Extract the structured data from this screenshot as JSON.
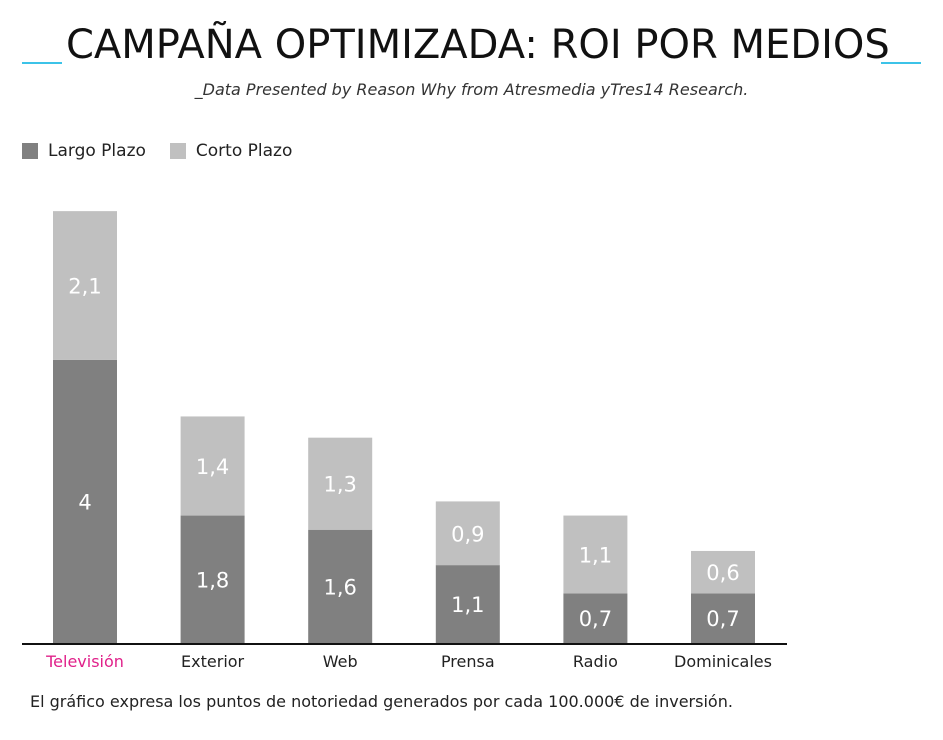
{
  "header": {
    "title": "CAMPAÑA OPTIMIZADA: ROI POR MEDIOS",
    "subtitle": "_Data Presented by Reason Why from Atresmedia yTres14 Research."
  },
  "colors": {
    "accent": "#3cc3e8",
    "long_term": "#808080",
    "short_term": "#c0c0c0",
    "highlight_label": "#e0218a",
    "axis": "#111111"
  },
  "footer": {
    "caption": "El gráfico expresa los puntos de notoriedad generados por cada 100.000€ de inversión."
  },
  "chart_data": {
    "type": "bar",
    "stacked": true,
    "title": "CAMPAÑA OPTIMIZADA: ROI POR MEDIOS",
    "xlabel": "",
    "ylabel": "",
    "legend_position": "top-left",
    "grid": false,
    "categories": [
      "Televisión",
      "Exterior",
      "Web",
      "Prensa",
      "Radio",
      "Dominicales"
    ],
    "highlighted_category": "Televisión",
    "series": [
      {
        "name": "Largo Plazo",
        "values": [
          4,
          1.8,
          1.6,
          1.1,
          0.7,
          0.7
        ],
        "labels": [
          "4",
          "1,8",
          "1,6",
          "1,1",
          "0,7",
          "0,7"
        ]
      },
      {
        "name": "Corto Plazo",
        "values": [
          2.1,
          1.4,
          1.3,
          0.9,
          1.1,
          0.6
        ],
        "labels": [
          "2,1",
          "1,4",
          "1,3",
          "0,9",
          "1,1",
          "0,6"
        ]
      }
    ],
    "ylim": [
      0,
      6.1
    ]
  }
}
